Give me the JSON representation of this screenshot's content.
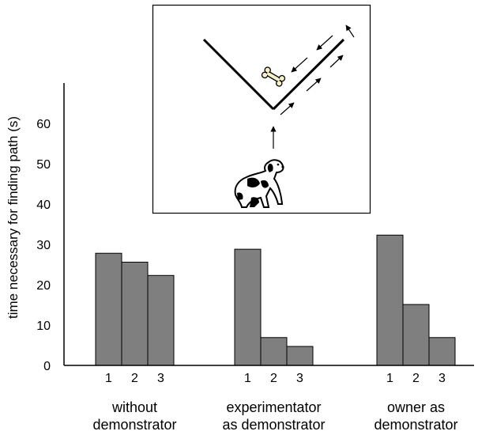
{
  "chart_data": {
    "type": "bar",
    "ylabel": "time necessary for finding path (s)",
    "ylim": [
      0,
      70
    ],
    "yticks": [
      0,
      10,
      20,
      30,
      40,
      50,
      60
    ],
    "grid": false,
    "groups": [
      {
        "label_lines": [
          "without",
          "demonstrator"
        ],
        "trials": [
          "1",
          "2",
          "3"
        ],
        "values": [
          27.8,
          25.6,
          22.3
        ]
      },
      {
        "label_lines": [
          "experimentator",
          "as demonstrator"
        ],
        "trials": [
          "1",
          "2",
          "3"
        ],
        "values": [
          28.8,
          6.9,
          4.7
        ]
      },
      {
        "label_lines": [
          "owner as",
          "demonstrator"
        ],
        "trials": [
          "1",
          "2",
          "3"
        ],
        "values": [
          32.3,
          15.1,
          6.9
        ]
      }
    ],
    "bar_color": "#7f7f7f"
  },
  "inset": {
    "icons": [
      "dog-icon",
      "bone-icon",
      "arrow-icon"
    ]
  }
}
